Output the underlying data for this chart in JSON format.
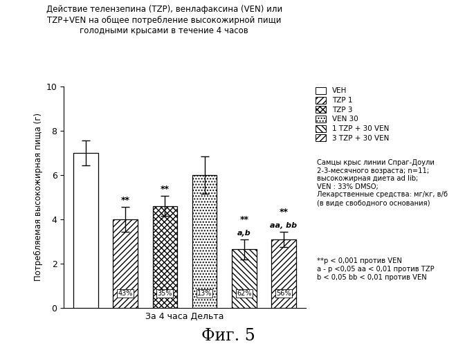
{
  "title_line1": "Действие телензепина (TZP), венлафаксина (VEN) или",
  "title_line2": "TZP+VEN на общее потребление высокожирной пищи",
  "title_line3": "голодными крысами в течение 4 часов",
  "xlabel": "За 4 часа Дельта",
  "ylabel": "Потребляемая высокожирная пища (г)",
  "ylim": [
    0,
    10
  ],
  "yticks": [
    0,
    2,
    4,
    6,
    8,
    10
  ],
  "values": [
    7.0,
    4.0,
    4.6,
    6.0,
    2.65,
    3.1
  ],
  "errors": [
    0.55,
    0.55,
    0.45,
    0.85,
    0.45,
    0.35
  ],
  "percentages": [
    "",
    "43%",
    "35%",
    "13%",
    "62%",
    "56%"
  ],
  "sig_star": [
    "",
    "**",
    "**",
    "",
    "**",
    "**"
  ],
  "sig_letter": [
    "",
    "",
    "",
    "",
    "a,b",
    "aa, bb"
  ],
  "bar_hatches": [
    "",
    "/",
    "+",
    ".",
    "\\",
    "/"
  ],
  "bar_facecolors": [
    "white",
    "white",
    "white",
    "white",
    "white",
    "white"
  ],
  "bar_edgecolors": [
    "black",
    "black",
    "black",
    "black",
    "black",
    "black"
  ],
  "legend_labels": [
    "VEH",
    "TZP 1",
    "TZP 3",
    "VEN 30",
    "1 TZP + 30 VEN",
    "3 TZP + 30 VEN"
  ],
  "legend_hatches": [
    "",
    "/",
    "+",
    ".",
    "\\",
    "/"
  ],
  "legend_facecolors": [
    "white",
    "white",
    "white",
    "white",
    "white",
    "white"
  ],
  "note_lines": [
    "Самцы крыс линии Спраг-Доули",
    "2-3-месячного возраста; n=11;",
    "высокожирная диета ad lib;",
    "VEN : 33% DMSO;",
    "Лекарственные средства: мг/кг, в/б",
    "(в виде свободного основания)"
  ],
  "footnote_lines": [
    "**p < 0,001 против VEN",
    "a - p <0,05 aa < 0,01 против TZP",
    "b < 0,05 bb < 0,01 против VEN"
  ],
  "figure_label": "Фиг. 5"
}
